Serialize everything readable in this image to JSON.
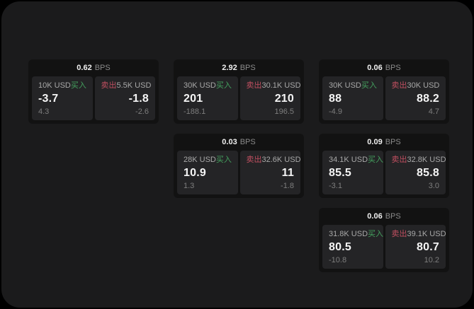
{
  "labels": {
    "bps_unit": "BPS",
    "buy": "买入",
    "sell": "卖出"
  },
  "colors": {
    "window_background": "#1b1b1c",
    "card_background": "#121212",
    "panel_background": "#242426",
    "buy_accent": "#44a05e",
    "sell_accent": "#c04f60"
  },
  "cards": [
    {
      "bps": "0.62",
      "buy": {
        "amount": "10K USD",
        "price": "-3.7",
        "delta": "4.3"
      },
      "sell": {
        "amount": "5.5K USD",
        "price": "-1.8",
        "delta": "-2.6"
      }
    },
    {
      "bps": "2.92",
      "buy": {
        "amount": "30K USD",
        "price": "201",
        "delta": "-188.1"
      },
      "sell": {
        "amount": "30.1K USD",
        "price": "210",
        "delta": "196.5"
      }
    },
    {
      "bps": "0.06",
      "buy": {
        "amount": "30K USD",
        "price": "88",
        "delta": "-4.9"
      },
      "sell": {
        "amount": "30K USD",
        "price": "88.2",
        "delta": "4.7"
      }
    },
    {
      "bps": "0.03",
      "buy": {
        "amount": "28K USD",
        "price": "10.9",
        "delta": "1.3"
      },
      "sell": {
        "amount": "32.6K USD",
        "price": "11",
        "delta": "-1.8"
      }
    },
    {
      "bps": "0.09",
      "buy": {
        "amount": "34.1K USD",
        "price": "85.5",
        "delta": "-3.1"
      },
      "sell": {
        "amount": "32.8K USD",
        "price": "85.8",
        "delta": "3.0"
      }
    },
    {
      "bps": "0.06",
      "buy": {
        "amount": "31.8K USD",
        "price": "80.5",
        "delta": "-10.8"
      },
      "sell": {
        "amount": "39.1K USD",
        "price": "80.7",
        "delta": "10.2"
      }
    }
  ]
}
